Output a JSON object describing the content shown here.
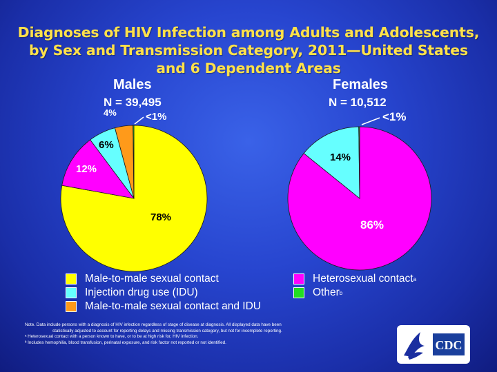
{
  "title": {
    "line1": "Diagnoses of HIV Infection among Adults and Adolescents,",
    "line2": "by Sex and Transmission Category, 2011—United States",
    "line3": "and 6 Dependent Areas"
  },
  "males": {
    "heading": "Males",
    "n_label": "N = 39,495"
  },
  "females": {
    "heading": "Females",
    "n_label": "N = 10,512"
  },
  "chart_data": [
    {
      "type": "pie",
      "title": "Males",
      "n": "N = 39,495",
      "slices": [
        {
          "label": "Male-to-male sexual contact",
          "value": 78,
          "display": "78%",
          "color": "#ffff00"
        },
        {
          "label": "Heterosexual contact",
          "value": 12,
          "display": "12%",
          "color": "#ff00ff"
        },
        {
          "label": "Injection drug use (IDU)",
          "value": 6,
          "display": "6%",
          "color": "#66ffff"
        },
        {
          "label": "Male-to-male sexual contact and IDU",
          "value": 4,
          "display": "4%",
          "color": "#ff9a1a"
        },
        {
          "label": "Other",
          "value": 0.2,
          "display": "<1%",
          "color": "#22dd22"
        }
      ]
    },
    {
      "type": "pie",
      "title": "Females",
      "n": "N = 10,512",
      "slices": [
        {
          "label": "Heterosexual contact",
          "value": 86,
          "display": "86%",
          "color": "#ff00ff"
        },
        {
          "label": "Injection drug use (IDU)",
          "value": 14,
          "display": "14%",
          "color": "#66ffff"
        },
        {
          "label": "Other",
          "value": 0.2,
          "display": "<1%",
          "color": "#22dd22"
        }
      ]
    }
  ],
  "legend": {
    "items": [
      {
        "label": "Male-to-male sexual contact",
        "sup": "",
        "color": "#ffff00"
      },
      {
        "label": "Injection drug use (IDU)",
        "sup": "",
        "color": "#66ffff"
      },
      {
        "label": "Male-to-male sexual contact and IDU",
        "sup": "",
        "color": "#ff9a1a"
      },
      {
        "label": "Heterosexual contact",
        "sup": "a",
        "color": "#ff00ff"
      },
      {
        "label": "Other",
        "sup": "b",
        "color": "#22dd22"
      }
    ]
  },
  "notes": {
    "note_line1": "Note. Data include persons with a diagnosis of HIV infection regardless of stage of disease at diagnosis. All displayed data have been",
    "note_line2": "statistically adjusted to account for reporting delays and missing transmission category, but not for incomplete reporting.",
    "footnote_a": "ᵃ Heterosexual contact with a person known to have, or to be at high risk for, HIV infection.",
    "footnote_b": "ᵇ Includes hemophilia, blood transfusion, perinatal exposure, and risk factor not reported or not identified."
  },
  "logo": {
    "text": "CDC"
  }
}
